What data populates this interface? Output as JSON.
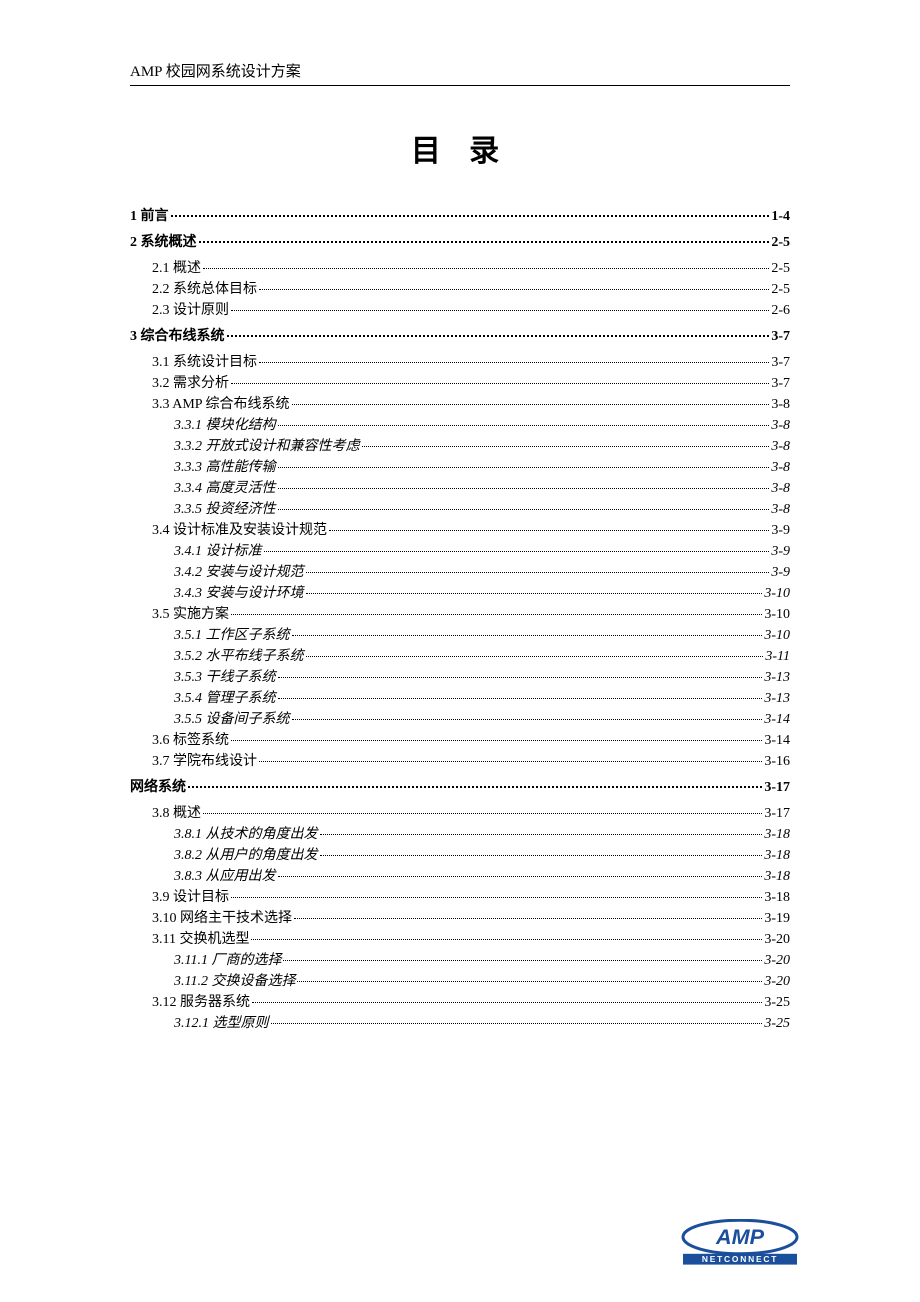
{
  "header": "AMP 校园网系统设计方案",
  "title": "目 录",
  "logo": {
    "top_text": "AMP",
    "bottom_text": "NETCONNECT",
    "fill": "#1b4f9c",
    "text_fill": "#ffffff"
  },
  "toc": [
    {
      "level": 1,
      "label": "1 前言",
      "page": "1-4"
    },
    {
      "level": 1,
      "label": "2 系统概述",
      "page": "2-5"
    },
    {
      "level": 2,
      "label": "2.1 概述",
      "page": "2-5"
    },
    {
      "level": 2,
      "label": "2.2 系统总体目标",
      "page": "2-5"
    },
    {
      "level": 2,
      "label": "2.3 设计原则",
      "page": "2-6"
    },
    {
      "level": 1,
      "label": "3 综合布线系统",
      "page": "3-7"
    },
    {
      "level": 2,
      "label": "3.1 系统设计目标",
      "page": "3-7"
    },
    {
      "level": 2,
      "label": "3.2 需求分析",
      "page": "3-7"
    },
    {
      "level": 2,
      "label": "3.3 AMP 综合布线系统",
      "page": "3-8"
    },
    {
      "level": 3,
      "label": "3.3.1 模块化结构",
      "page": "3-8"
    },
    {
      "level": 3,
      "label": "3.3.2 开放式设计和兼容性考虑",
      "page": "3-8"
    },
    {
      "level": 3,
      "label": "3.3.3 高性能传输",
      "page": "3-8"
    },
    {
      "level": 3,
      "label": "3.3.4 高度灵活性",
      "page": "3-8"
    },
    {
      "level": 3,
      "label": "3.3.5 投资经济性",
      "page": "3-8"
    },
    {
      "level": 2,
      "label": "3.4 设计标准及安装设计规范",
      "page": "3-9"
    },
    {
      "level": 3,
      "label": "3.4.1 设计标准",
      "page": "3-9"
    },
    {
      "level": 3,
      "label": "3.4.2 安装与设计规范",
      "page": "3-9"
    },
    {
      "level": 3,
      "label": "3.4.3 安装与设计环境",
      "page": "3-10"
    },
    {
      "level": 2,
      "label": "3.5 实施方案",
      "page": "3-10"
    },
    {
      "level": 3,
      "label": "3.5.1 工作区子系统",
      "page": "3-10"
    },
    {
      "level": 3,
      "label": "3.5.2 水平布线子系统",
      "page": "3-11"
    },
    {
      "level": 3,
      "label": "3.5.3 干线子系统",
      "page": "3-13"
    },
    {
      "level": 3,
      "label": "3.5.4 管理子系统",
      "page": "3-13"
    },
    {
      "level": 3,
      "label": "3.5.5 设备间子系统",
      "page": "3-14"
    },
    {
      "level": 2,
      "label": "3.6 标签系统",
      "page": "3-14"
    },
    {
      "level": 2,
      "label": "3.7 学院布线设计",
      "page": "3-16"
    },
    {
      "level": 1,
      "label": "网络系统",
      "page": "3-17"
    },
    {
      "level": 2,
      "label": "3.8 概述",
      "page": "3-17"
    },
    {
      "level": 3,
      "label": "3.8.1 从技术的角度出发",
      "page": "3-18"
    },
    {
      "level": 3,
      "label": "3.8.2 从用户的角度出发",
      "page": "3-18"
    },
    {
      "level": 3,
      "label": "3.8.3 从应用出发",
      "page": "3-18"
    },
    {
      "level": 2,
      "label": "3.9 设计目标",
      "page": "3-18"
    },
    {
      "level": 2,
      "label": "3.10 网络主干技术选择",
      "page": "3-19"
    },
    {
      "level": 2,
      "label": "3.11 交换机选型",
      "page": "3-20"
    },
    {
      "level": 3,
      "label": "3.11.1 厂商的选择",
      "page": "3-20"
    },
    {
      "level": 3,
      "label": "3.11.2 交换设备选择",
      "page": "3-20"
    },
    {
      "level": 2,
      "label": "3.12 服务器系统",
      "page": "3-25"
    },
    {
      "level": 3,
      "label": "3.12.1 选型原则",
      "page": "3-25"
    }
  ]
}
